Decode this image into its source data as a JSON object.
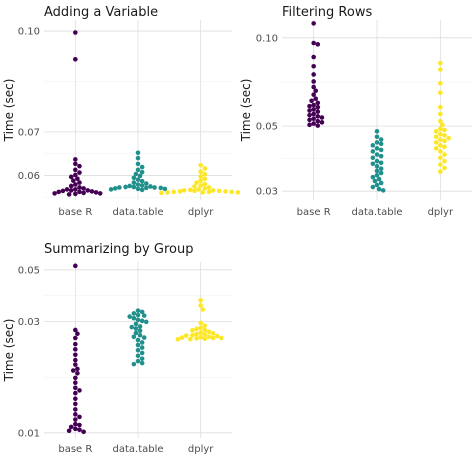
{
  "chart_data": [
    {
      "type": "scatter",
      "subtype": "beeswarm",
      "title": "Adding a Variable",
      "xlabel": "",
      "ylabel": "Time (sec)",
      "scale_y": "log10",
      "ylim": [
        0.055,
        0.104
      ],
      "y_ticks": [
        0.06,
        0.07,
        0.1
      ],
      "y_tick_labels": [
        "0.06",
        "0.07",
        "0.10"
      ],
      "categories": [
        "base R",
        "data.table",
        "dplyr"
      ],
      "grid": true,
      "legend": "none",
      "colors": [
        "#440154",
        "#21908C",
        "#FDE725"
      ],
      "series": [
        {
          "category": "base R",
          "values": [
            0.0995,
            0.0905,
            0.0635,
            0.0625,
            0.062,
            0.0612,
            0.0606,
            0.0601,
            0.0597,
            0.0593,
            0.0589,
            0.0585,
            0.0581,
            0.0578,
            0.0575,
            0.0573,
            0.0571,
            0.0569,
            0.0568,
            0.0567,
            0.0566,
            0.0565,
            0.0564,
            0.0563,
            0.0562,
            0.0561,
            0.0566,
            0.0569,
            0.0563,
            0.0571
          ]
        },
        {
          "category": "data.table",
          "values": [
            0.065,
            0.0638,
            0.0625,
            0.0618,
            0.0612,
            0.0607,
            0.0603,
            0.0599,
            0.0595,
            0.0591,
            0.0588,
            0.0585,
            0.0583,
            0.0581,
            0.0579,
            0.0577,
            0.0576,
            0.0575,
            0.0574,
            0.0573,
            0.0572,
            0.0571,
            0.057,
            0.0575,
            0.0578,
            0.0574,
            0.0572,
            0.0576
          ]
        },
        {
          "category": "dplyr",
          "values": [
            0.0622,
            0.0615,
            0.0608,
            0.0603,
            0.0598,
            0.0593,
            0.0589,
            0.0585,
            0.0582,
            0.0579,
            0.0577,
            0.0575,
            0.0573,
            0.0571,
            0.057,
            0.0569,
            0.0568,
            0.0567,
            0.0566,
            0.0565,
            0.0565,
            0.0564,
            0.0566,
            0.0568,
            0.0567,
            0.0569,
            0.0565,
            0.0566
          ]
        }
      ]
    },
    {
      "type": "scatter",
      "subtype": "beeswarm",
      "title": "Filtering Rows",
      "xlabel": "",
      "ylabel": "Time (sec)",
      "scale_y": "log10",
      "ylim": [
        0.028,
        0.115
      ],
      "y_ticks": [
        0.03,
        0.05,
        0.1
      ],
      "y_tick_labels": [
        "0.03",
        "0.05",
        "0.10"
      ],
      "categories": [
        "base R",
        "data.table",
        "dplyr"
      ],
      "grid": true,
      "legend": "none",
      "colors": [
        "#440154",
        "#21908C",
        "#FDE725"
      ],
      "series": [
        {
          "category": "base R",
          "values": [
            0.112,
            0.096,
            0.095,
            0.086,
            0.08,
            0.075,
            0.071,
            0.068,
            0.066,
            0.064,
            0.062,
            0.061,
            0.06,
            0.059,
            0.058,
            0.057,
            0.056,
            0.055,
            0.054,
            0.0535,
            0.053,
            0.0525,
            0.052,
            0.0515,
            0.051,
            0.0505,
            0.0502,
            0.0565,
            0.0585,
            0.0545
          ]
        },
        {
          "category": "data.table",
          "values": [
            0.048,
            0.046,
            0.045,
            0.044,
            0.043,
            0.042,
            0.041,
            0.04,
            0.039,
            0.038,
            0.0372,
            0.0365,
            0.0358,
            0.0352,
            0.0346,
            0.034,
            0.0335,
            0.033,
            0.0325,
            0.032,
            0.0315,
            0.031,
            0.0305,
            0.0302,
            0.0375,
            0.0395,
            0.0415,
            0.0435
          ]
        },
        {
          "category": "dplyr",
          "values": [
            0.082,
            0.078,
            0.07,
            0.065,
            0.058,
            0.055,
            0.052,
            0.0505,
            0.049,
            0.048,
            0.047,
            0.046,
            0.045,
            0.044,
            0.043,
            0.042,
            0.041,
            0.04,
            0.039,
            0.038,
            0.037,
            0.036,
            0.035,
            0.0465,
            0.0445,
            0.0425,
            0.0485,
            0.0455
          ]
        }
      ]
    },
    {
      "type": "scatter",
      "subtype": "beeswarm",
      "title": "Summarizing by Group",
      "xlabel": "",
      "ylabel": "Time (sec)",
      "scale_y": "log10",
      "ylim": [
        0.0095,
        0.054
      ],
      "y_ticks": [
        0.01,
        0.03,
        0.05
      ],
      "y_tick_labels": [
        "0.01",
        "0.03",
        "0.05"
      ],
      "categories": [
        "base R",
        "data.table",
        "dplyr"
      ],
      "grid": true,
      "legend": "none",
      "colors": [
        "#440154",
        "#21908C",
        "#FDE725"
      ],
      "series": [
        {
          "category": "base R",
          "values": [
            0.052,
            0.0276,
            0.0266,
            0.0255,
            0.024,
            0.0228,
            0.0216,
            0.0205,
            0.0196,
            0.0188,
            0.018,
            0.0172,
            0.0164,
            0.0156,
            0.0148,
            0.014,
            0.0133,
            0.0126,
            0.012,
            0.0114,
            0.0109,
            0.0106,
            0.0104,
            0.0102,
            0.0101,
            0.0103,
            0.0108,
            0.0117,
            0.0152,
            0.0185
          ]
        },
        {
          "category": "data.table",
          "values": [
            0.0334,
            0.033,
            0.0325,
            0.032,
            0.0315,
            0.031,
            0.0305,
            0.0299,
            0.0293,
            0.0286,
            0.028,
            0.0274,
            0.0268,
            0.0262,
            0.0256,
            0.025,
            0.0244,
            0.0238,
            0.0232,
            0.0226,
            0.022,
            0.0214,
            0.0208,
            0.0203,
            0.0199,
            0.0197,
            0.0258,
            0.0284,
            0.0302,
            0.0318
          ]
        },
        {
          "category": "dplyr",
          "values": [
            0.037,
            0.0352,
            0.0338,
            0.0296,
            0.0288,
            0.0282,
            0.0276,
            0.0271,
            0.0267,
            0.0264,
            0.0262,
            0.026,
            0.0258,
            0.0256,
            0.0255,
            0.0254,
            0.0253,
            0.0252,
            0.0257,
            0.0261,
            0.0265,
            0.0269,
            0.0275,
            0.0279,
            0.0252,
            0.0255
          ]
        }
      ]
    }
  ]
}
